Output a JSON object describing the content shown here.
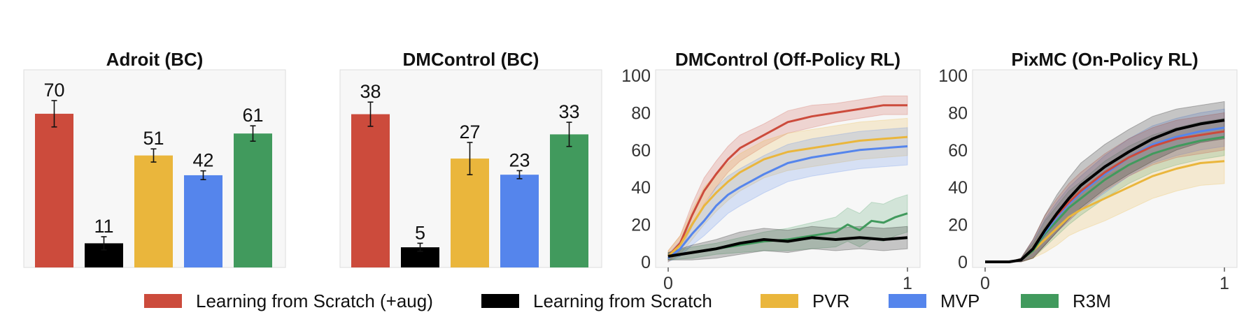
{
  "colors": {
    "Learning from Scratch (+aug)": "#cc4b3c",
    "Learning from Scratch": "#000000",
    "PVR": "#eab63c",
    "MVP": "#5585ec",
    "R3M": "#419a5d"
  },
  "legend": {
    "items": [
      "Learning from Scratch (+aug)",
      "Learning from Scratch",
      "PVR",
      "MVP",
      "R3M"
    ],
    "placement": "bottom"
  },
  "chart_data": [
    {
      "type": "bar",
      "title": "Adroit (BC)",
      "categories": [
        "Learning from Scratch (+aug)",
        "Learning from Scratch",
        "PVR",
        "MVP",
        "R3M"
      ],
      "values": [
        70,
        11,
        51,
        42,
        61
      ],
      "errors": [
        6,
        3,
        3,
        2,
        3.5
      ],
      "value_labels": [
        "70",
        "11",
        "51",
        "42",
        "61"
      ],
      "ylim": [
        0,
        90
      ],
      "grid": false
    },
    {
      "type": "bar",
      "title": "DMControl (BC)",
      "categories": [
        "Learning from Scratch (+aug)",
        "Learning from Scratch",
        "PVR",
        "MVP",
        "R3M"
      ],
      "values": [
        38,
        5,
        27,
        23,
        33
      ],
      "errors": [
        3,
        1,
        4,
        1,
        3
      ],
      "value_labels": [
        "38",
        "5",
        "27",
        "23",
        "33"
      ],
      "ylim": [
        0,
        49
      ],
      "grid": false
    },
    {
      "type": "line",
      "title": "DMControl (Off-Policy RL)",
      "xlim": [
        0,
        1
      ],
      "ylim": [
        -3,
        103
      ],
      "xticks": [
        "0",
        "1"
      ],
      "yticks": [
        "0",
        "20",
        "40",
        "60",
        "80",
        "100"
      ],
      "grid": false,
      "series": [
        {
          "name": "Learning from Scratch (+aug)",
          "x": [
            0,
            0.05,
            0.1,
            0.15,
            0.2,
            0.25,
            0.3,
            0.4,
            0.5,
            0.6,
            0.7,
            0.8,
            0.9,
            1.0
          ],
          "y": [
            3,
            10,
            25,
            38,
            47,
            55,
            61,
            68,
            75,
            78,
            80,
            82,
            84,
            84
          ],
          "band": [
            3,
            4,
            6,
            7,
            7,
            7,
            7,
            6,
            6,
            6,
            5,
            5,
            5,
            5
          ]
        },
        {
          "name": "PVR",
          "x": [
            0,
            0.05,
            0.1,
            0.15,
            0.2,
            0.25,
            0.3,
            0.4,
            0.5,
            0.6,
            0.7,
            0.8,
            0.9,
            1.0
          ],
          "y": [
            3,
            9,
            20,
            30,
            37,
            43,
            48,
            55,
            59,
            61,
            63,
            65,
            66,
            67
          ],
          "band": [
            3,
            5,
            8,
            10,
            10,
            10,
            10,
            10,
            10,
            10,
            10,
            10,
            10,
            10
          ]
        },
        {
          "name": "MVP",
          "x": [
            0,
            0.05,
            0.1,
            0.15,
            0.2,
            0.25,
            0.3,
            0.4,
            0.5,
            0.6,
            0.7,
            0.8,
            0.9,
            1.0
          ],
          "y": [
            2,
            7,
            15,
            22,
            30,
            36,
            40,
            47,
            53,
            56,
            58,
            60,
            61,
            62
          ],
          "band": [
            2,
            4,
            6,
            8,
            10,
            10,
            10,
            10,
            10,
            10,
            10,
            10,
            10,
            10
          ]
        },
        {
          "name": "R3M",
          "x": [
            0,
            0.1,
            0.2,
            0.3,
            0.4,
            0.5,
            0.6,
            0.7,
            0.75,
            0.8,
            0.85,
            0.9,
            0.95,
            1.0
          ],
          "y": [
            3,
            5,
            7,
            9,
            11,
            12,
            14,
            16,
            20,
            17,
            22,
            21,
            24,
            26
          ],
          "band": [
            2,
            3,
            3,
            4,
            5,
            6,
            7,
            8,
            9,
            9,
            10,
            10,
            10,
            10
          ]
        },
        {
          "name": "Learning from Scratch",
          "x": [
            0,
            0.1,
            0.2,
            0.3,
            0.4,
            0.5,
            0.6,
            0.7,
            0.8,
            0.9,
            1.0
          ],
          "y": [
            3,
            5,
            7,
            10,
            12,
            11,
            13,
            12,
            13,
            12,
            13
          ],
          "band": [
            2,
            4,
            5,
            6,
            6,
            6,
            6,
            6,
            6,
            6,
            6
          ]
        }
      ]
    },
    {
      "type": "line",
      "title": "PixMC (On-Policy RL)",
      "xlim": [
        0,
        1
      ],
      "ylim": [
        -3,
        103
      ],
      "xticks": [
        "0",
        "1"
      ],
      "yticks": [
        "0",
        "20",
        "40",
        "60",
        "80",
        "100"
      ],
      "grid": false,
      "series": [
        {
          "name": "PVR",
          "x": [
            0,
            0.05,
            0.1,
            0.15,
            0.2,
            0.25,
            0.3,
            0.35,
            0.4,
            0.5,
            0.6,
            0.7,
            0.8,
            0.9,
            1.0
          ],
          "y": [
            0,
            0,
            0,
            1,
            6,
            12,
            18,
            24,
            28,
            34,
            40,
            46,
            50,
            53,
            54
          ],
          "band": [
            0,
            0,
            0,
            1,
            4,
            7,
            9,
            10,
            11,
            12,
            12,
            12,
            12,
            12,
            12
          ]
        },
        {
          "name": "R3M",
          "x": [
            0,
            0.05,
            0.1,
            0.15,
            0.2,
            0.25,
            0.3,
            0.35,
            0.4,
            0.5,
            0.6,
            0.7,
            0.8,
            0.9,
            1.0
          ],
          "y": [
            0,
            0,
            0,
            1,
            6,
            15,
            22,
            29,
            34,
            44,
            52,
            58,
            62,
            65,
            67
          ],
          "band": [
            0,
            0,
            0,
            1,
            4,
            7,
            8,
            9,
            9,
            10,
            10,
            10,
            10,
            10,
            10
          ]
        },
        {
          "name": "MVP",
          "x": [
            0,
            0.05,
            0.1,
            0.15,
            0.2,
            0.25,
            0.3,
            0.35,
            0.4,
            0.5,
            0.6,
            0.7,
            0.8,
            0.9,
            1.0
          ],
          "y": [
            0,
            0,
            0,
            1,
            7,
            16,
            24,
            31,
            37,
            47,
            56,
            63,
            67,
            70,
            72
          ],
          "band": [
            0,
            0,
            0,
            1,
            4,
            7,
            8,
            9,
            9,
            10,
            10,
            10,
            10,
            10,
            10
          ]
        },
        {
          "name": "Learning from Scratch (+aug)",
          "x": [
            0,
            0.05,
            0.1,
            0.15,
            0.2,
            0.25,
            0.3,
            0.35,
            0.4,
            0.5,
            0.6,
            0.7,
            0.8,
            0.9,
            1.0
          ],
          "y": [
            0,
            0,
            0,
            1,
            7,
            17,
            25,
            32,
            38,
            48,
            56,
            62,
            66,
            68,
            70
          ],
          "band": [
            0,
            0,
            0,
            1,
            5,
            8,
            9,
            10,
            10,
            10,
            10,
            10,
            10,
            10,
            10
          ]
        },
        {
          "name": "Learning from Scratch",
          "x": [
            0,
            0.05,
            0.1,
            0.15,
            0.2,
            0.25,
            0.3,
            0.35,
            0.4,
            0.5,
            0.6,
            0.7,
            0.8,
            0.9,
            1.0
          ],
          "y": [
            0,
            0,
            0,
            1,
            7,
            17,
            26,
            34,
            41,
            51,
            59,
            66,
            71,
            74,
            76
          ],
          "band": [
            0,
            0,
            0,
            1,
            5,
            8,
            10,
            11,
            12,
            12,
            12,
            12,
            11,
            10,
            10
          ]
        }
      ]
    }
  ]
}
